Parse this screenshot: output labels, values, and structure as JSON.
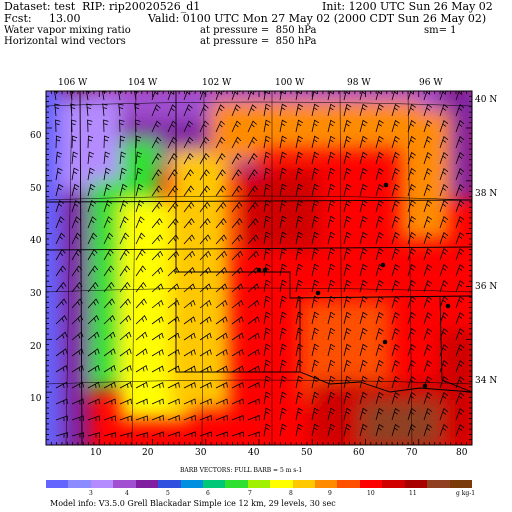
{
  "header": {
    "dataset": "Dataset: test  RIP: rip20020526_d1",
    "init": "Init: 1200 UTC Sun 26 May 02",
    "fcst": "Fcst:     13.00",
    "valid": "Valid: 0100 UTC Mon 27 May 02 (2000 CDT Sun 26 May 02)",
    "field1": "Water vapor mixing ratio",
    "field1_level": "at pressure =  850 hPa",
    "field1_sm": "sm= 1",
    "field2": "Horizontal wind vectors",
    "field2_level": "at pressure =  850 hPa"
  },
  "map": {
    "top_lon_labels": [
      "106 W",
      "104 W",
      "102 W",
      "100 W",
      "98 W",
      "96 W"
    ],
    "right_lat_labels": [
      "40 N",
      "38 N",
      "36 N",
      "34 N"
    ],
    "x_ticks": [
      "10",
      "20",
      "30",
      "40",
      "50",
      "60",
      "70",
      "80"
    ],
    "y_ticks": [
      "60",
      "50",
      "40",
      "30",
      "20",
      "10"
    ]
  },
  "colorbar": {
    "title": "BARB VECTORS:  FULL BARB = 5 m s-1",
    "labels": [
      "3",
      "4",
      "5",
      "6",
      "7",
      "8",
      "9",
      "10",
      "11"
    ],
    "units": "g kg-1",
    "colors": [
      "#6464ff",
      "#8c8cff",
      "#b48cff",
      "#a050d0",
      "#8020a0",
      "#3050e0",
      "#0090e0",
      "#00c878",
      "#30e030",
      "#a0f000",
      "#ffff00",
      "#ffc800",
      "#ff8c00",
      "#ff5000",
      "#ff0000",
      "#d00000",
      "#a80000",
      "#904020",
      "#7a3a0a"
    ]
  },
  "footer": {
    "model_info": "Model info: V3.5.0   Grell     Blackadar   Simple ice    12 km,   29 levels,    30 sec"
  }
}
